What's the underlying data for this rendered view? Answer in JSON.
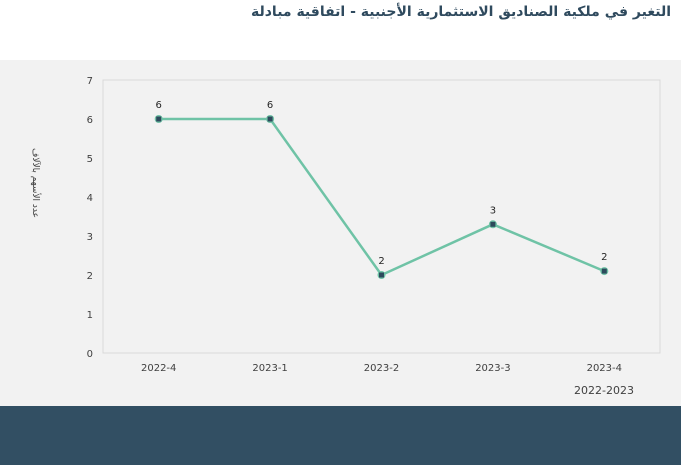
{
  "title": "التغير في ملكية الصناديق الاستثمارية الأجنبية - اتفاقية مبادلة",
  "chart_data": {
    "type": "line",
    "categories": [
      "2022-4",
      "2023-1",
      "2023-2",
      "2023-3",
      "2023-4"
    ],
    "series": [
      {
        "values": [
          6,
          6,
          2,
          3.3,
          2.1
        ],
        "labels": [
          "6",
          "6",
          "2",
          "3",
          "2"
        ]
      }
    ],
    "xlabel": "2022-2023",
    "ylabel": "عدد الأسهم بالآلاف",
    "ylim": [
      0,
      7
    ],
    "yticks": [
      "0",
      "1",
      "2",
      "3",
      "4",
      "5",
      "6",
      "7"
    ],
    "grid": false,
    "colors": {
      "line": "#6fc3a6",
      "marker": "#2d4a5c",
      "footer": "#324f63",
      "panel": "#f2f2f2"
    }
  }
}
